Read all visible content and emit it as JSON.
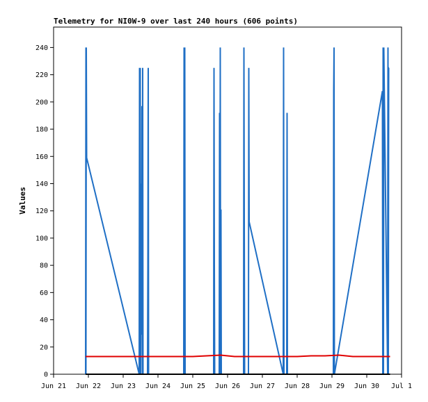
{
  "chart_data": {
    "type": "line",
    "title": "Telemetry for NI0W-9 over last 240 hours (606 points)",
    "xlabel": "",
    "ylabel": "Values",
    "ylim": [
      0,
      255
    ],
    "xlim": [
      21.0,
      31.0
    ],
    "yticks": [
      0,
      20,
      40,
      60,
      80,
      100,
      120,
      140,
      160,
      180,
      200,
      220,
      240
    ],
    "xticks": [
      {
        "x": 21,
        "label": "Jun 21"
      },
      {
        "x": 22,
        "label": "Jun 22"
      },
      {
        "x": 23,
        "label": "Jun 23"
      },
      {
        "x": 24,
        "label": "Jun 24"
      },
      {
        "x": 25,
        "label": "Jun 25"
      },
      {
        "x": 26,
        "label": "Jun 26"
      },
      {
        "x": 27,
        "label": "Jun 27"
      },
      {
        "x": 28,
        "label": "Jun 28"
      },
      {
        "x": 29,
        "label": "Jun 29"
      },
      {
        "x": 30,
        "label": "Jun 30"
      },
      {
        "x": 31,
        "label": "Jul 1"
      }
    ],
    "grid": false,
    "colors": {
      "series_blue": "#1f6fc5",
      "series_red": "#e00000",
      "series_black": "#000000"
    },
    "series": [
      {
        "color": "#1f6fc5",
        "x": [
          21.92,
          21.93,
          21.93,
          21.94,
          21.95,
          23.46,
          23.47,
          23.48,
          23.49,
          23.5,
          23.51,
          23.52,
          23.53,
          23.54,
          23.55,
          23.56,
          23.57,
          23.7,
          23.71,
          23.72,
          23.73,
          24.74,
          24.75,
          24.76,
          24.77,
          24.78,
          25.6,
          25.61,
          25.62,
          25.63,
          25.76,
          25.77,
          25.78,
          25.79,
          25.8,
          25.81,
          25.82,
          26.46,
          26.47,
          26.48,
          26.49,
          26.6,
          26.61,
          26.62,
          27.6,
          27.61,
          27.62,
          27.7,
          27.71,
          27.72,
          29.04,
          29.05,
          29.06,
          29.07,
          30.45,
          30.46,
          30.47,
          30.48,
          30.49,
          30.6,
          30.61,
          30.62,
          30.63,
          30.64
        ],
        "values": [
          0,
          240,
          0,
          240,
          159,
          0,
          225,
          0,
          225,
          0,
          84,
          140,
          29,
          197,
          0,
          225,
          0,
          0,
          80,
          225,
          0,
          0,
          240,
          0,
          240,
          0,
          0,
          225,
          80,
          0,
          0,
          192,
          0,
          240,
          0,
          121,
          0,
          0,
          240,
          112,
          0,
          0,
          225,
          112,
          0,
          240,
          0,
          0,
          192,
          0,
          0,
          208,
          240,
          0,
          208,
          0,
          240,
          0,
          240,
          0,
          240,
          0,
          225,
          225
        ]
      },
      {
        "color": "#e00000",
        "x": [
          21.92,
          23.0,
          24.0,
          25.0,
          25.4,
          25.8,
          26.2,
          27.0,
          28.0,
          28.4,
          28.8,
          29.2,
          29.6,
          30.0,
          30.67
        ],
        "values": [
          13,
          13,
          13,
          13,
          13.5,
          14,
          13,
          13,
          13,
          13.5,
          13.5,
          14,
          13,
          13,
          13
        ]
      },
      {
        "color": "#000000",
        "x": [
          21.92,
          30.67
        ],
        "values": [
          0,
          0
        ]
      }
    ]
  }
}
